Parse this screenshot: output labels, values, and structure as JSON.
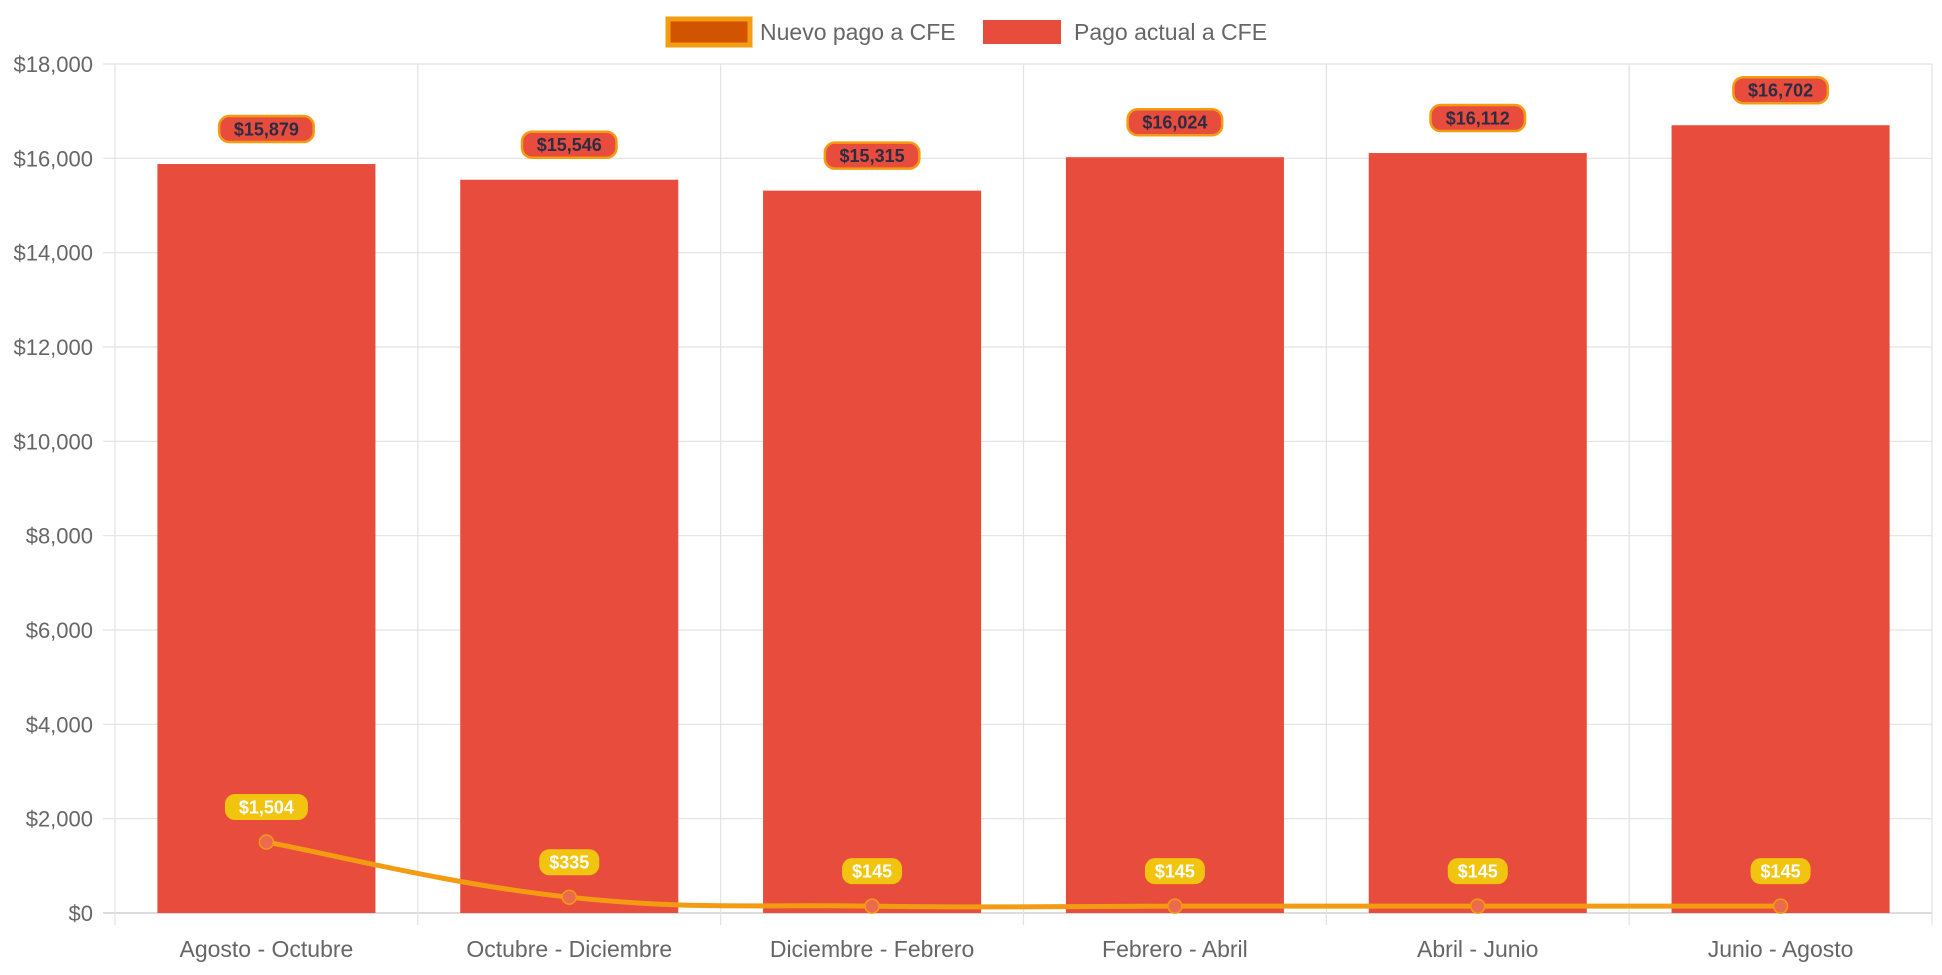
{
  "chart_data": {
    "type": "bar",
    "categories": [
      "Agosto - Octubre",
      "Octubre - Diciembre",
      "Diciembre - Febrero",
      "Febrero - Abril",
      "Abril - Junio",
      "Junio - Agosto"
    ],
    "series": [
      {
        "name": "Nuevo pago a CFE",
        "type": "line",
        "values": [
          1504,
          335,
          145,
          145,
          145,
          145
        ],
        "labels": [
          "$1,504",
          "$335",
          "$145",
          "$145",
          "$145",
          "$145"
        ],
        "color": "#f39c12",
        "point_color": "#ec6a4d",
        "label_bg": "#f1c40f",
        "legend_fill": "#d35400"
      },
      {
        "name": "Pago actual a CFE",
        "type": "bar",
        "values": [
          15879,
          15546,
          15315,
          16024,
          16112,
          16702
        ],
        "labels": [
          "$15,879",
          "$15,546",
          "$15,315",
          "$16,024",
          "$16,112",
          "$16,702"
        ],
        "color": "#e74c3c",
        "label_border": "#f39c12",
        "label_text_color": "#2c2c44"
      }
    ],
    "ylim": [
      0,
      18000
    ],
    "y_ticks": [
      {
        "value": 0,
        "label": "$0"
      },
      {
        "value": 2000,
        "label": "$2,000"
      },
      {
        "value": 4000,
        "label": "$4,000"
      },
      {
        "value": 6000,
        "label": "$6,000"
      },
      {
        "value": 8000,
        "label": "$8,000"
      },
      {
        "value": 10000,
        "label": "$10,000"
      },
      {
        "value": 12000,
        "label": "$12,000"
      },
      {
        "value": 14000,
        "label": "$14,000"
      },
      {
        "value": 16000,
        "label": "$16,000"
      },
      {
        "value": 18000,
        "label": "$18,000"
      }
    ],
    "grid": true,
    "legend_position": "top"
  },
  "legend": {
    "items": [
      {
        "label": "Nuevo pago a CFE",
        "fill": "#d35400",
        "border": "#f39c12"
      },
      {
        "label": "Pago actual a CFE",
        "fill": "#e74c3c",
        "border": "#e74c3c"
      }
    ]
  }
}
